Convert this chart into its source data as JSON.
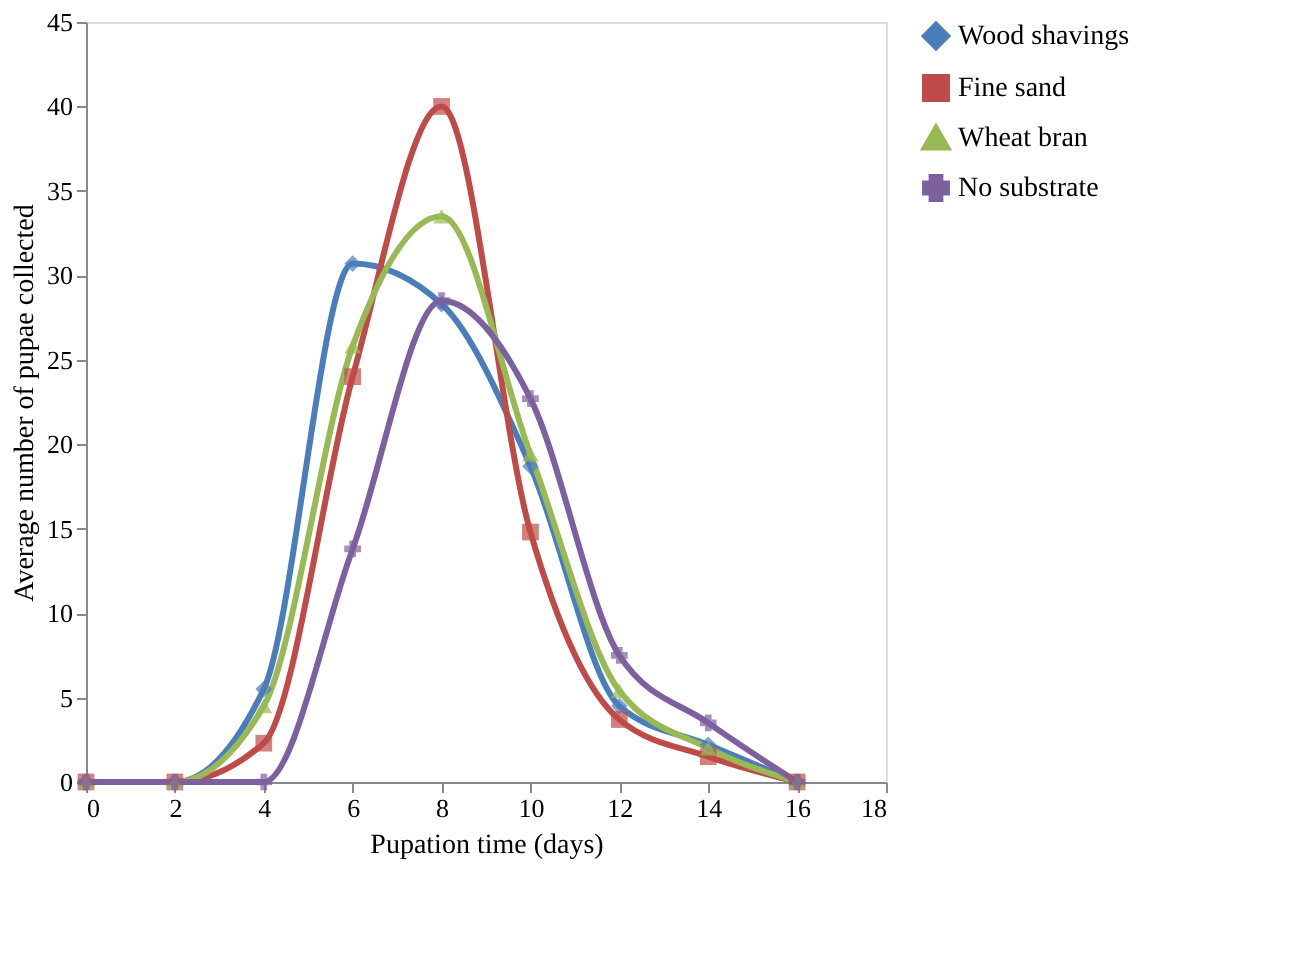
{
  "chart_data": {
    "type": "line",
    "xlabel": "Pupation time  (days)",
    "ylabel": "Average number  of pupae collected",
    "x": [
      0,
      2,
      4,
      6,
      8,
      10,
      12,
      14,
      16
    ],
    "series": [
      {
        "name": "Wood shavings",
        "color": "#4a7ebb",
        "marker": "diamond",
        "values": [
          0,
          0,
          5.5,
          30.7,
          28.3,
          18.7,
          4.5,
          2.2,
          0
        ]
      },
      {
        "name": "Fine sand",
        "color": "#be4b48",
        "marker": "square",
        "values": [
          0,
          0,
          2.3,
          24,
          40,
          14.8,
          3.7,
          1.5,
          0
        ]
      },
      {
        "name": "Wheat bran",
        "color": "#98b954",
        "marker": "triangle",
        "values": [
          0,
          0,
          4.5,
          25.8,
          33.5,
          19.4,
          5.4,
          2,
          0
        ]
      },
      {
        "name": "No substrate",
        "color": "#7d60a0",
        "marker": "cross",
        "values": [
          0,
          0,
          0,
          13.8,
          28.5,
          22.7,
          7.5,
          3.5,
          0
        ]
      }
    ],
    "xlim": [
      0,
      18
    ],
    "xticks": [
      0,
      2,
      4,
      6,
      8,
      10,
      12,
      14,
      16,
      18
    ],
    "ylim": [
      0,
      45
    ],
    "yticks": [
      0,
      5,
      10,
      15,
      20,
      25,
      30,
      35,
      40,
      45
    ],
    "grid": false,
    "legend": "right",
    "line_style": "solid"
  }
}
